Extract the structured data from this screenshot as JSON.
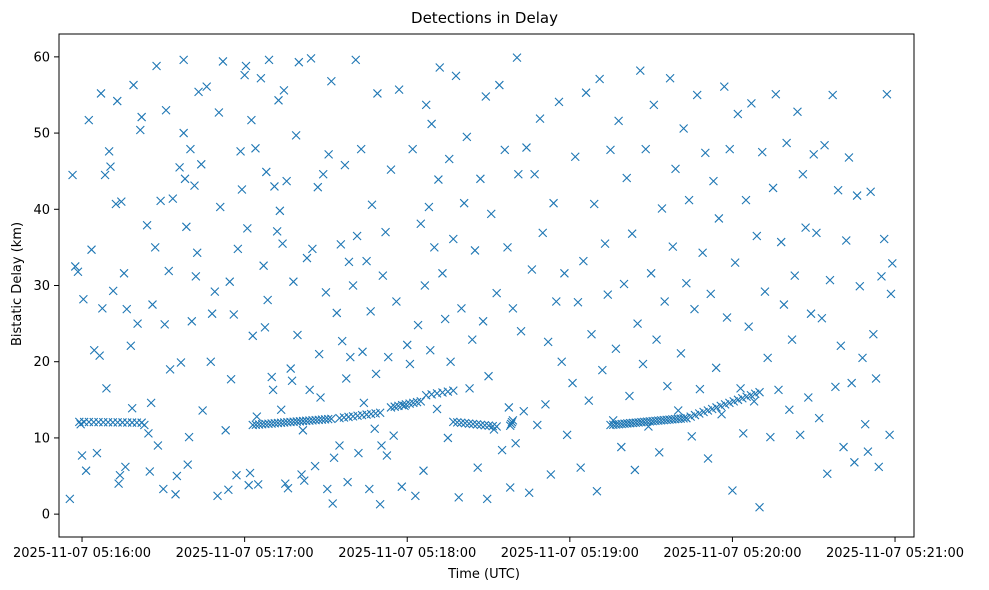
{
  "chart_data": {
    "type": "scatter",
    "title": "Detections in Delay",
    "xlabel": "Time (UTC)",
    "ylabel": "Bistatic Delay (km)",
    "marker": "x",
    "color": "#1f77b4",
    "grid": false,
    "x_unit": "seconds after 2025-11-07 05:15:00 UTC",
    "xlim": [
      51.5,
      367
    ],
    "ylim": [
      -3,
      63
    ],
    "x_ticks": [
      {
        "value": 60,
        "label": "2025-11-07 05:16:00"
      },
      {
        "value": 120,
        "label": "2025-11-07 05:17:00"
      },
      {
        "value": 180,
        "label": "2025-11-07 05:18:00"
      },
      {
        "value": 240,
        "label": "2025-11-07 05:19:00"
      },
      {
        "value": 300,
        "label": "2025-11-07 05:20:00"
      },
      {
        "value": 360,
        "label": "2025-11-07 05:21:00"
      }
    ],
    "y_ticks": [
      {
        "value": 0,
        "label": "0"
      },
      {
        "value": 10,
        "label": "10"
      },
      {
        "value": 20,
        "label": "20"
      },
      {
        "value": 30,
        "label": "30"
      },
      {
        "value": 40,
        "label": "40"
      },
      {
        "value": 50,
        "label": "50"
      },
      {
        "value": 60,
        "label": "60"
      }
    ],
    "tracks": [
      {
        "x_start": 59,
        "x_end": 82,
        "y_start": 12.1,
        "y_end": 12.0,
        "count": 14
      },
      {
        "x_start": 123,
        "x_end": 152,
        "y_start": 11.7,
        "y_end": 12.5,
        "count": 26
      },
      {
        "x_start": 155,
        "x_end": 170,
        "y_start": 12.6,
        "y_end": 13.3,
        "count": 10
      },
      {
        "x_start": 174,
        "x_end": 185,
        "y_start": 14.0,
        "y_end": 14.8,
        "count": 9
      },
      {
        "x_start": 187,
        "x_end": 197,
        "y_start": 15.6,
        "y_end": 16.2,
        "count": 6
      },
      {
        "x_start": 197,
        "x_end": 213,
        "y_start": 12.1,
        "y_end": 11.5,
        "count": 12
      },
      {
        "x_start": 218,
        "x_end": 219,
        "y_start": 11.6,
        "y_end": 12.3,
        "count": 4
      },
      {
        "x_start": 255,
        "x_end": 283,
        "y_start": 11.7,
        "y_end": 12.6,
        "count": 28
      },
      {
        "x_start": 283,
        "x_end": 310,
        "y_start": 12.6,
        "y_end": 16.0,
        "count": 18
      }
    ],
    "scatter_points": [
      [
        55.5,
        2.0
      ],
      [
        56.5,
        44.5
      ],
      [
        57.5,
        32.5
      ],
      [
        58.5,
        31.8
      ],
      [
        59.5,
        11.8
      ],
      [
        60,
        7.7
      ],
      [
        60.5,
        28.2
      ],
      [
        61.5,
        5.7
      ],
      [
        62.5,
        51.7
      ],
      [
        63.5,
        34.7
      ],
      [
        64.5,
        21.5
      ],
      [
        65.5,
        8.0
      ],
      [
        66.5,
        20.8
      ],
      [
        67,
        55.2
      ],
      [
        67.5,
        27.0
      ],
      [
        68.5,
        44.5
      ],
      [
        69,
        16.5
      ],
      [
        70,
        47.6
      ],
      [
        70.5,
        45.6
      ],
      [
        71.5,
        29.3
      ],
      [
        72.5,
        40.7
      ],
      [
        73,
        54.2
      ],
      [
        73.5,
        4.0
      ],
      [
        74,
        5.1
      ],
      [
        74.5,
        41.0
      ],
      [
        75.5,
        31.6
      ],
      [
        76,
        6.2
      ],
      [
        76.5,
        26.9
      ],
      [
        78,
        22.1
      ],
      [
        78.5,
        13.9
      ],
      [
        79,
        56.3
      ],
      [
        80.5,
        25.0
      ],
      [
        81.5,
        50.4
      ],
      [
        82,
        52.1
      ],
      [
        83,
        11.7
      ],
      [
        84,
        37.9
      ],
      [
        84.5,
        10.6
      ],
      [
        85,
        5.6
      ],
      [
        85.5,
        14.6
      ],
      [
        86,
        27.5
      ],
      [
        87,
        35.0
      ],
      [
        87.5,
        58.8
      ],
      [
        88,
        9.0
      ],
      [
        89,
        41.1
      ],
      [
        90,
        3.3
      ],
      [
        90.5,
        24.9
      ],
      [
        91,
        53.0
      ],
      [
        92,
        31.9
      ],
      [
        92.5,
        19.0
      ],
      [
        93.5,
        41.4
      ],
      [
        94.5,
        2.6
      ],
      [
        95,
        5.0
      ],
      [
        96,
        45.5
      ],
      [
        96.5,
        19.9
      ],
      [
        97.5,
        50.0
      ],
      [
        97.5,
        59.6
      ],
      [
        98,
        44.0
      ],
      [
        98.5,
        37.7
      ],
      [
        99,
        6.5
      ],
      [
        99.5,
        10.1
      ],
      [
        100,
        47.9
      ],
      [
        100.5,
        25.3
      ],
      [
        101.5,
        43.1
      ],
      [
        102,
        31.2
      ],
      [
        102.5,
        34.3
      ],
      [
        103,
        55.4
      ],
      [
        104,
        45.9
      ],
      [
        104.5,
        13.6
      ],
      [
        106,
        56.1
      ],
      [
        107.5,
        20.0
      ],
      [
        108,
        26.3
      ],
      [
        109,
        29.2
      ],
      [
        110,
        2.4
      ],
      [
        110.5,
        52.7
      ],
      [
        111,
        40.3
      ],
      [
        112,
        59.4
      ],
      [
        113,
        11.0
      ],
      [
        114,
        3.2
      ],
      [
        114.5,
        30.5
      ],
      [
        115,
        17.7
      ],
      [
        116,
        26.2
      ],
      [
        117,
        5.1
      ],
      [
        117.5,
        34.8
      ],
      [
        118.5,
        47.6
      ],
      [
        119,
        42.6
      ],
      [
        120,
        57.6
      ],
      [
        120.5,
        58.8
      ],
      [
        121,
        37.5
      ],
      [
        121.5,
        3.8
      ],
      [
        122,
        5.4
      ],
      [
        122.5,
        51.7
      ],
      [
        123,
        23.4
      ],
      [
        124,
        48.0
      ],
      [
        124.5,
        12.8
      ],
      [
        125,
        3.9
      ],
      [
        126,
        57.2
      ],
      [
        127,
        32.6
      ],
      [
        127.5,
        24.5
      ],
      [
        128,
        44.9
      ],
      [
        128.5,
        28.1
      ],
      [
        129,
        59.6
      ],
      [
        130,
        18.0
      ],
      [
        130.5,
        16.3
      ],
      [
        131,
        43.0
      ],
      [
        132,
        37.1
      ],
      [
        132.5,
        54.3
      ],
      [
        133,
        39.8
      ],
      [
        133.5,
        13.7
      ],
      [
        134,
        35.5
      ],
      [
        134.5,
        55.6
      ],
      [
        135,
        4.0
      ],
      [
        135.5,
        43.7
      ],
      [
        136,
        3.4
      ],
      [
        137,
        19.1
      ],
      [
        137.5,
        17.5
      ],
      [
        138,
        30.5
      ],
      [
        139,
        49.7
      ],
      [
        139.5,
        23.5
      ],
      [
        140,
        59.3
      ],
      [
        141,
        5.2
      ],
      [
        141.5,
        11.0
      ],
      [
        142,
        4.4
      ],
      [
        143,
        33.6
      ],
      [
        144,
        16.3
      ],
      [
        144.5,
        59.8
      ],
      [
        145,
        34.8
      ],
      [
        146,
        6.3
      ],
      [
        147,
        42.9
      ],
      [
        147.5,
        21.0
      ],
      [
        148,
        15.3
      ],
      [
        149,
        44.6
      ],
      [
        150,
        29.1
      ],
      [
        150.5,
        3.3
      ],
      [
        151,
        47.2
      ],
      [
        152,
        56.8
      ],
      [
        152.5,
        1.4
      ],
      [
        153,
        7.4
      ],
      [
        154,
        26.4
      ],
      [
        155,
        9.0
      ],
      [
        155.5,
        35.4
      ],
      [
        156,
        22.7
      ],
      [
        157,
        45.8
      ],
      [
        157.5,
        17.8
      ],
      [
        158,
        4.2
      ],
      [
        158.5,
        33.1
      ],
      [
        159,
        20.6
      ],
      [
        160,
        30.0
      ],
      [
        161,
        59.6
      ],
      [
        161.5,
        36.5
      ],
      [
        162,
        8.0
      ],
      [
        163,
        47.9
      ],
      [
        163.5,
        21.3
      ],
      [
        164,
        14.6
      ],
      [
        165,
        33.2
      ],
      [
        166,
        3.3
      ],
      [
        166.5,
        26.6
      ],
      [
        167,
        40.6
      ],
      [
        168,
        11.2
      ],
      [
        168.5,
        18.4
      ],
      [
        169,
        55.2
      ],
      [
        170,
        1.3
      ],
      [
        170.5,
        9.0
      ],
      [
        171,
        31.3
      ],
      [
        172,
        37.0
      ],
      [
        172.5,
        7.7
      ],
      [
        173,
        20.6
      ],
      [
        174,
        45.2
      ],
      [
        175,
        10.3
      ],
      [
        176,
        27.9
      ],
      [
        177,
        55.7
      ],
      [
        178,
        3.6
      ],
      [
        179,
        14.2
      ],
      [
        180,
        22.2
      ],
      [
        181,
        19.7
      ],
      [
        182,
        47.9
      ],
      [
        183,
        2.4
      ],
      [
        184,
        24.8
      ],
      [
        185,
        38.1
      ],
      [
        186,
        5.7
      ],
      [
        186.5,
        30.0
      ],
      [
        187,
        53.7
      ],
      [
        188,
        40.3
      ],
      [
        188.5,
        21.5
      ],
      [
        189,
        51.2
      ],
      [
        190,
        35.0
      ],
      [
        191,
        13.8
      ],
      [
        191.5,
        43.9
      ],
      [
        192,
        58.6
      ],
      [
        193,
        31.6
      ],
      [
        194,
        25.6
      ],
      [
        195,
        10.0
      ],
      [
        195.5,
        46.6
      ],
      [
        196,
        20.0
      ],
      [
        197,
        36.1
      ],
      [
        198,
        57.5
      ],
      [
        199,
        2.2
      ],
      [
        200,
        27.0
      ],
      [
        201,
        40.8
      ],
      [
        202,
        49.5
      ],
      [
        203,
        16.5
      ],
      [
        204,
        22.9
      ],
      [
        205,
        34.6
      ],
      [
        206,
        6.1
      ],
      [
        207,
        44.0
      ],
      [
        208,
        25.3
      ],
      [
        209,
        54.8
      ],
      [
        209.5,
        2.0
      ],
      [
        210,
        18.1
      ],
      [
        211,
        39.4
      ],
      [
        212,
        11.1
      ],
      [
        213,
        29.0
      ],
      [
        214,
        56.3
      ],
      [
        215,
        8.4
      ],
      [
        216,
        47.8
      ],
      [
        217,
        35.0
      ],
      [
        217.5,
        14.0
      ],
      [
        218,
        3.5
      ],
      [
        219,
        27.0
      ],
      [
        220,
        9.3
      ],
      [
        220.5,
        59.9
      ],
      [
        221,
        44.6
      ],
      [
        222,
        24.0
      ],
      [
        223,
        13.5
      ],
      [
        224,
        48.1
      ],
      [
        225,
        2.8
      ],
      [
        226,
        32.1
      ],
      [
        227,
        44.6
      ],
      [
        228,
        11.7
      ],
      [
        229,
        51.9
      ],
      [
        230,
        36.9
      ],
      [
        231,
        14.4
      ],
      [
        232,
        22.6
      ],
      [
        233,
        5.2
      ],
      [
        234,
        40.8
      ],
      [
        235,
        27.9
      ],
      [
        236,
        54.1
      ],
      [
        237,
        20.0
      ],
      [
        238,
        31.6
      ],
      [
        239,
        10.4
      ],
      [
        241,
        17.2
      ],
      [
        242,
        46.9
      ],
      [
        243,
        27.8
      ],
      [
        244,
        6.1
      ],
      [
        245,
        33.2
      ],
      [
        246,
        55.3
      ],
      [
        247,
        14.9
      ],
      [
        248,
        23.6
      ],
      [
        249,
        40.7
      ],
      [
        250,
        3.0
      ],
      [
        251,
        57.1
      ],
      [
        252,
        18.9
      ],
      [
        253,
        35.5
      ],
      [
        254,
        28.8
      ],
      [
        255,
        47.8
      ],
      [
        256,
        12.3
      ],
      [
        257,
        21.7
      ],
      [
        258,
        51.6
      ],
      [
        259,
        8.8
      ],
      [
        260,
        30.2
      ],
      [
        261,
        44.1
      ],
      [
        262,
        15.5
      ],
      [
        263,
        36.8
      ],
      [
        264,
        5.8
      ],
      [
        265,
        25.0
      ],
      [
        266,
        58.2
      ],
      [
        267,
        19.7
      ],
      [
        268,
        47.9
      ],
      [
        269,
        11.5
      ],
      [
        270,
        31.6
      ],
      [
        271,
        53.7
      ],
      [
        272,
        22.9
      ],
      [
        273,
        8.1
      ],
      [
        274,
        40.1
      ],
      [
        275,
        27.9
      ],
      [
        276,
        16.8
      ],
      [
        277,
        57.2
      ],
      [
        278,
        35.1
      ],
      [
        279,
        45.3
      ],
      [
        280,
        13.6
      ],
      [
        281,
        21.1
      ],
      [
        282,
        50.6
      ],
      [
        283,
        30.3
      ],
      [
        284,
        41.2
      ],
      [
        285,
        10.2
      ],
      [
        286,
        26.9
      ],
      [
        287,
        55.0
      ],
      [
        288,
        16.4
      ],
      [
        289,
        34.3
      ],
      [
        290,
        47.4
      ],
      [
        291,
        7.3
      ],
      [
        292,
        28.9
      ],
      [
        293,
        43.7
      ],
      [
        294,
        19.2
      ],
      [
        295,
        38.8
      ],
      [
        296,
        13.1
      ],
      [
        297,
        56.1
      ],
      [
        298,
        25.8
      ],
      [
        299,
        47.9
      ],
      [
        300,
        3.1
      ],
      [
        301,
        33.0
      ],
      [
        302,
        52.5
      ],
      [
        303,
        16.5
      ],
      [
        304,
        10.6
      ],
      [
        305,
        41.2
      ],
      [
        306,
        24.6
      ],
      [
        307,
        53.9
      ],
      [
        308,
        14.8
      ],
      [
        309,
        36.5
      ],
      [
        310,
        0.9
      ],
      [
        311,
        47.5
      ],
      [
        312,
        29.2
      ],
      [
        313,
        20.5
      ],
      [
        314,
        10.1
      ],
      [
        315,
        42.8
      ],
      [
        316,
        55.1
      ],
      [
        317,
        16.3
      ],
      [
        318,
        35.7
      ],
      [
        319,
        27.5
      ],
      [
        320,
        48.7
      ],
      [
        321,
        13.7
      ],
      [
        322,
        22.9
      ],
      [
        323,
        31.3
      ],
      [
        324,
        52.8
      ],
      [
        325,
        10.4
      ],
      [
        326,
        44.6
      ],
      [
        327,
        37.6
      ],
      [
        328,
        15.3
      ],
      [
        329,
        26.3
      ],
      [
        330,
        47.2
      ],
      [
        331,
        36.9
      ],
      [
        332,
        12.6
      ],
      [
        333,
        25.7
      ],
      [
        334,
        48.4
      ],
      [
        335,
        5.3
      ],
      [
        336,
        30.7
      ],
      [
        337,
        55.0
      ],
      [
        338,
        16.7
      ],
      [
        339,
        42.5
      ],
      [
        340,
        22.1
      ],
      [
        341,
        8.8
      ],
      [
        342,
        35.9
      ],
      [
        343,
        46.8
      ],
      [
        344,
        17.2
      ],
      [
        345,
        6.8
      ],
      [
        346,
        41.8
      ],
      [
        347,
        29.9
      ],
      [
        348,
        20.5
      ],
      [
        349,
        11.8
      ],
      [
        350,
        8.2
      ],
      [
        351,
        42.3
      ],
      [
        352,
        23.6
      ],
      [
        353,
        17.8
      ],
      [
        354,
        6.2
      ],
      [
        355,
        31.2
      ],
      [
        356,
        36.1
      ],
      [
        357,
        55.1
      ],
      [
        358,
        10.4
      ],
      [
        358.5,
        28.9
      ],
      [
        359,
        32.9
      ]
    ]
  }
}
